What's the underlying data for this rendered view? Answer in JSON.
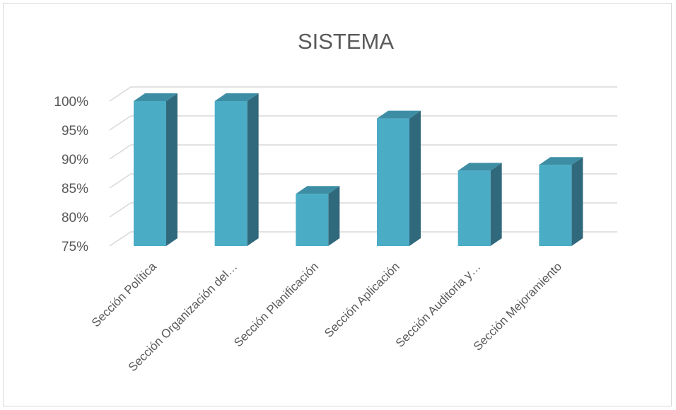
{
  "chart_data": {
    "type": "bar",
    "title": "SISTEMA",
    "categories": [
      "Sección Política",
      "Sección Organización del…",
      "Sección Planificación",
      "Sección Aplicación",
      "Sección Auditoria y…",
      "Sección Mejoramiento"
    ],
    "series": [
      {
        "values": [
          100,
          100,
          84,
          97,
          88,
          89
        ]
      }
    ],
    "y_ticks": [
      "75%",
      "80%",
      "85%",
      "90%",
      "95%",
      "100%"
    ],
    "y_tick_values": [
      75,
      80,
      85,
      90,
      95,
      100
    ],
    "ylim": [
      75,
      100
    ],
    "ylabel_unit": "%",
    "grid": true,
    "legend": false,
    "style": "3d-clustered-column",
    "colors": {
      "bar_front": "#4bacc6",
      "bar_side": "#31697c",
      "bar_top": "#3d8ea5",
      "grid": "#d9d9d9",
      "text": "#595959"
    }
  }
}
